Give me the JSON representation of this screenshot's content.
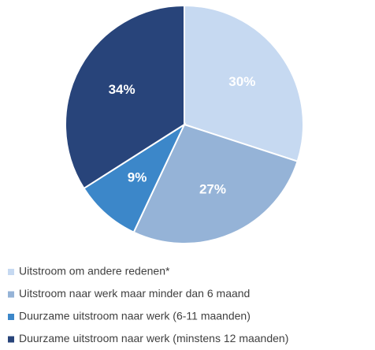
{
  "chart_data": {
    "type": "pie",
    "categories": [
      "Uitstroom om andere redenen*",
      "Uitstroom naar werk maar minder dan 6 maand",
      "Duurzame uitstroom naar werk (6-11 maanden)",
      "Duurzame uitstroom naar werk (minstens 12 maanden)"
    ],
    "values": [
      30,
      27,
      9,
      34
    ],
    "value_labels": [
      "30%",
      "27%",
      "9%",
      "34%"
    ],
    "colors": [
      "#c6d9f1",
      "#95b3d7",
      "#3c87c9",
      "#28447a"
    ]
  }
}
